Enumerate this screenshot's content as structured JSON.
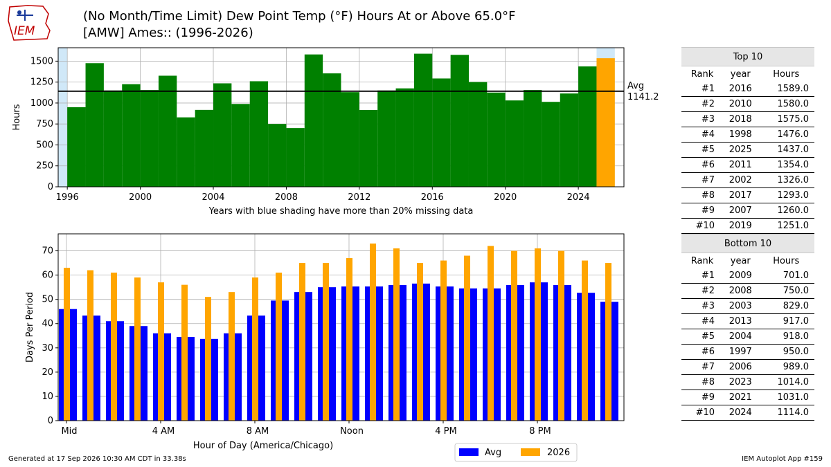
{
  "header": {
    "title_line1": "(No Month/Time Limit) Dew Point Temp (°F) Hours At or Above 65.0°F",
    "title_line2": "[AMW] Ames:: (1996-2026)",
    "logo_text": "IEM"
  },
  "colors": {
    "bar": "#008000",
    "current": "#FFA500",
    "avg": "#0000FF",
    "missing_shade": "#D0E8F8"
  },
  "chart_data": [
    {
      "type": "bar",
      "title": "(No Month/Time Limit) Dew Point Temp (°F) Hours At or Above 65.0°F",
      "xlabel": "Years with blue shading have more than 20% missing data",
      "ylabel": "Hours",
      "xlim": [
        1995.5,
        2026.5
      ],
      "ylim": [
        0,
        1660
      ],
      "x_ticks": [
        1996,
        2000,
        2004,
        2008,
        2012,
        2016,
        2020,
        2024
      ],
      "y_ticks": [
        0,
        250,
        500,
        750,
        1000,
        1250,
        1500
      ],
      "grid": true,
      "x": [
        1997,
        1998,
        1999,
        2000,
        2001,
        2002,
        2003,
        2004,
        2005,
        2006,
        2007,
        2008,
        2009,
        2010,
        2011,
        2012,
        2013,
        2014,
        2015,
        2016,
        2017,
        2018,
        2019,
        2020,
        2021,
        2022,
        2023,
        2024,
        2025,
        2026
      ],
      "values": [
        950,
        1476,
        1150,
        1225,
        1155,
        1326,
        829,
        918,
        1235,
        989,
        1260,
        750,
        701,
        1580,
        1354,
        1130,
        917,
        1150,
        1175,
        1589,
        1293,
        1575,
        1251,
        1125,
        1031,
        1155,
        1014,
        1114,
        1437,
        1535
      ],
      "highlight_year": 2026,
      "missing_data_years": [
        1996,
        2026
      ],
      "avg_line": {
        "value": 1141.2,
        "label": "Avg",
        "value_label": "1141.2"
      }
    },
    {
      "type": "bar",
      "xlabel": "Hour of Day (America/Chicago)",
      "ylabel": "Days Per Period",
      "ylim": [
        0,
        77
      ],
      "y_ticks": [
        0,
        10,
        20,
        30,
        40,
        50,
        60,
        70
      ],
      "x_tick_labels": [
        {
          "hour": 0,
          "label": "Mid"
        },
        {
          "hour": 4,
          "label": "4 AM"
        },
        {
          "hour": 8,
          "label": "8 AM"
        },
        {
          "hour": 12,
          "label": "Noon"
        },
        {
          "hour": 16,
          "label": "4 PM"
        },
        {
          "hour": 20,
          "label": "8 PM"
        }
      ],
      "grid": true,
      "hours": [
        0,
        1,
        2,
        3,
        4,
        5,
        6,
        7,
        8,
        9,
        10,
        11,
        12,
        13,
        14,
        15,
        16,
        17,
        18,
        19,
        20,
        21,
        22,
        23
      ],
      "series": [
        {
          "name": "Avg",
          "values": [
            46,
            43.3,
            41,
            39,
            36,
            34.5,
            33.7,
            36,
            43.3,
            49.5,
            53,
            55,
            55.3,
            55.3,
            55.9,
            56.5,
            55.3,
            54.5,
            54.5,
            55.9,
            57,
            55.9,
            52.7,
            49
          ]
        },
        {
          "name": "2026",
          "values": [
            63,
            62,
            61,
            59,
            57,
            56,
            51,
            53,
            59,
            61,
            65,
            65,
            67,
            73,
            71,
            65,
            66,
            68,
            72,
            70,
            71,
            70,
            66,
            65
          ]
        }
      ],
      "legend": {
        "placement": "bottom-center",
        "items": [
          "Avg",
          "2026"
        ]
      }
    }
  ],
  "top10": {
    "caption": "Top 10",
    "headers": [
      "Rank",
      "year",
      "Hours"
    ],
    "rows": [
      [
        "#1",
        "2016",
        "1589.0"
      ],
      [
        "#2",
        "2010",
        "1580.0"
      ],
      [
        "#3",
        "2018",
        "1575.0"
      ],
      [
        "#4",
        "1998",
        "1476.0"
      ],
      [
        "#5",
        "2025",
        "1437.0"
      ],
      [
        "#6",
        "2011",
        "1354.0"
      ],
      [
        "#7",
        "2002",
        "1326.0"
      ],
      [
        "#8",
        "2017",
        "1293.0"
      ],
      [
        "#9",
        "2007",
        "1260.0"
      ],
      [
        "#10",
        "2019",
        "1251.0"
      ]
    ]
  },
  "bottom10": {
    "caption": "Bottom 10",
    "headers": [
      "Rank",
      "year",
      "Hours"
    ],
    "rows": [
      [
        "#1",
        "2009",
        "701.0"
      ],
      [
        "#2",
        "2008",
        "750.0"
      ],
      [
        "#3",
        "2003",
        "829.0"
      ],
      [
        "#4",
        "2013",
        "917.0"
      ],
      [
        "#5",
        "2004",
        "918.0"
      ],
      [
        "#6",
        "1997",
        "950.0"
      ],
      [
        "#7",
        "2006",
        "989.0"
      ],
      [
        "#8",
        "2023",
        "1014.0"
      ],
      [
        "#9",
        "2021",
        "1031.0"
      ],
      [
        "#10",
        "2024",
        "1114.0"
      ]
    ]
  },
  "footer": {
    "generated": "Generated at 17 Sep 2026 10:30 AM CDT in 33.38s",
    "app": "IEM Autoplot App #159"
  }
}
